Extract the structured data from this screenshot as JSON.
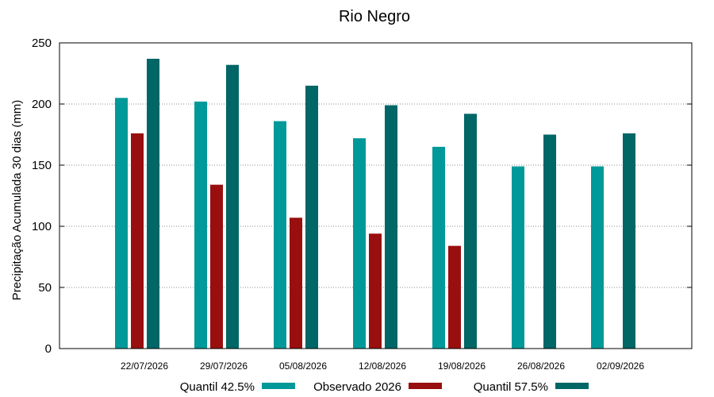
{
  "chart_data": {
    "type": "bar",
    "title": "Rio Negro",
    "xlabel": "",
    "ylabel": "Precipitação Acumulada 30 dias (mm)",
    "ylim": [
      0,
      250
    ],
    "yticks": [
      0,
      50,
      100,
      150,
      200,
      250
    ],
    "grid": true,
    "legend_position": "bottom",
    "categories": [
      "22/07/2026",
      "29/07/2026",
      "05/08/2026",
      "12/08/2026",
      "19/08/2026",
      "26/08/2026",
      "02/09/2026"
    ],
    "series": [
      {
        "name": "Quantil 42.5%",
        "color": "#009999",
        "values": [
          205,
          202,
          186,
          172,
          165,
          149,
          149
        ]
      },
      {
        "name": "Observado 2026",
        "color": "#990F0F",
        "values": [
          176,
          134,
          107,
          94,
          84,
          null,
          null
        ]
      },
      {
        "name": "Quantil 57.5%",
        "color": "#006666",
        "values": [
          237,
          232,
          215,
          199,
          192,
          175,
          176
        ]
      }
    ]
  }
}
